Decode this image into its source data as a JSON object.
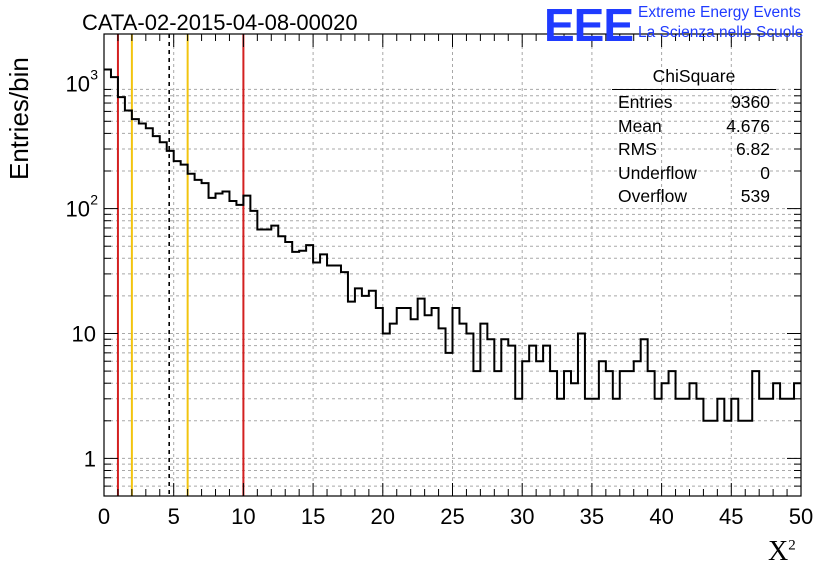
{
  "title": "CATA-02-2015-04-08-00020",
  "logo": {
    "mark": "EEE",
    "line1": "Extreme Energy Events",
    "line2": "La Scienza nelle Scuole",
    "color": "#1f3bff"
  },
  "stats": {
    "title": "ChiSquare",
    "rows": [
      {
        "label": "Entries",
        "value": "9360"
      },
      {
        "label": "Mean",
        "value": "4.676"
      },
      {
        "label": "RMS",
        "value": "6.82"
      },
      {
        "label": "Underflow",
        "value": "0"
      },
      {
        "label": "Overflow",
        "value": "539"
      }
    ]
  },
  "chart_data": {
    "type": "histogram",
    "title": "CATA-02-2015-04-08-00020",
    "xlabel": "X",
    "xlabel_superscript": "2",
    "ylabel": "Entries/bin",
    "xlim": [
      0,
      50
    ],
    "ylim": [
      0.5,
      2500
    ],
    "log_y": true,
    "grid": true,
    "bin_width": 0.5,
    "x_ticks": [
      "0",
      "5",
      "10",
      "15",
      "20",
      "25",
      "30",
      "35",
      "40",
      "45",
      "50"
    ],
    "y_ticks": [
      {
        "base": "10",
        "exp": "3",
        "value": 1000
      },
      {
        "base": "10",
        "exp": "2",
        "value": 100
      },
      {
        "base": "10",
        "exp": "",
        "value": 10
      },
      {
        "base": "1",
        "exp": "",
        "value": 1
      }
    ],
    "bin_counts": [
      1300,
      1130,
      780,
      610,
      520,
      480,
      440,
      380,
      340,
      290,
      240,
      225,
      190,
      170,
      160,
      122,
      132,
      137,
      115,
      107,
      127,
      96,
      68,
      68,
      73,
      60,
      54,
      45,
      46,
      51,
      37,
      43,
      35,
      35,
      31,
      18,
      23,
      20,
      22,
      16,
      10,
      12,
      16,
      16,
      13,
      19,
      14,
      16,
      11,
      7,
      16,
      12,
      10,
      5,
      12,
      9,
      5,
      9,
      8,
      3,
      6,
      8,
      6,
      8,
      5,
      3,
      5,
      4,
      10,
      3,
      3,
      6,
      5,
      3,
      5,
      5,
      6,
      9,
      5,
      3,
      4,
      5,
      3,
      3,
      4,
      3,
      2,
      2,
      3,
      2,
      3,
      2,
      2,
      5,
      3,
      3,
      4,
      3,
      3,
      4
    ],
    "vertical_lines": [
      {
        "x": 1.0,
        "color": "#d32020",
        "style": "solid"
      },
      {
        "x": 2.0,
        "color": "#f2c40f",
        "style": "solid"
      },
      {
        "x": 4.676,
        "color": "#000000",
        "style": "dashed"
      },
      {
        "x": 6.0,
        "color": "#f2c40f",
        "style": "solid"
      },
      {
        "x": 10.0,
        "color": "#d32020",
        "style": "solid"
      }
    ],
    "line_color": "#000000"
  }
}
